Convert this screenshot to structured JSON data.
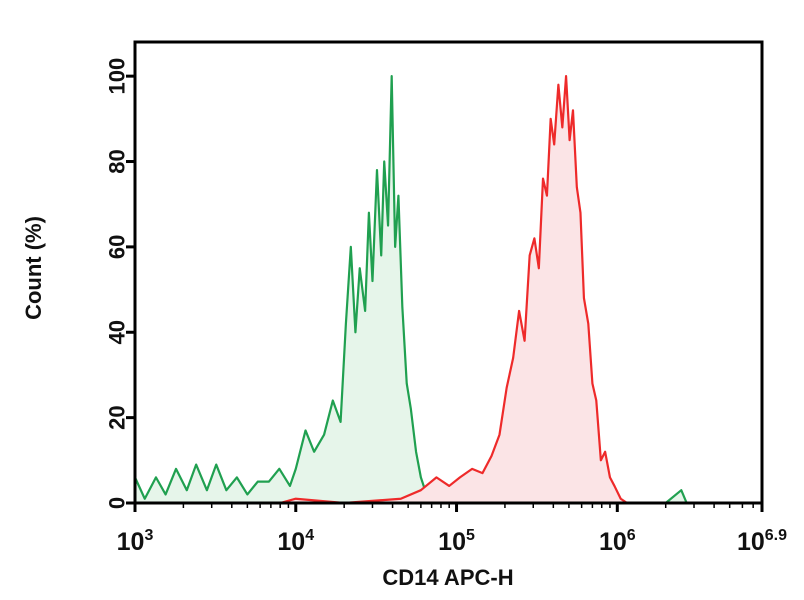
{
  "chart_data": {
    "type": "area",
    "xscale": "log",
    "xlim": [
      1000,
      7943282
    ],
    "ylim": [
      0,
      108
    ],
    "xlabel": "CD14 APC-H",
    "ylabel": "Count (%)",
    "yticks": [
      0,
      20,
      40,
      60,
      80,
      100
    ],
    "xticks": [
      {
        "base": "10",
        "exp": "3",
        "value": 1000
      },
      {
        "base": "10",
        "exp": "4",
        "value": 10000
      },
      {
        "base": "10",
        "exp": "5",
        "value": 100000
      },
      {
        "base": "10",
        "exp": "6",
        "value": 1000000
      },
      {
        "base": "10",
        "exp": "6.9",
        "value": 7943282
      }
    ],
    "grid": false,
    "legend": "none",
    "series": [
      {
        "color": "#20a050",
        "fill": "#e6f5ea",
        "points": [
          [
            1000,
            6
          ],
          [
            1150,
            1
          ],
          [
            1350,
            6
          ],
          [
            1550,
            2
          ],
          [
            1800,
            8
          ],
          [
            2100,
            3
          ],
          [
            2400,
            9
          ],
          [
            2800,
            3
          ],
          [
            3200,
            9
          ],
          [
            3700,
            3
          ],
          [
            4300,
            6
          ],
          [
            5000,
            2
          ],
          [
            5800,
            5
          ],
          [
            6800,
            5
          ],
          [
            7900,
            8
          ],
          [
            9200,
            4
          ],
          [
            10000,
            8
          ],
          [
            11500,
            17
          ],
          [
            13000,
            12
          ],
          [
            15000,
            16
          ],
          [
            17000,
            24
          ],
          [
            19000,
            19
          ],
          [
            20500,
            42
          ],
          [
            22000,
            60
          ],
          [
            23500,
            40
          ],
          [
            25000,
            55
          ],
          [
            27000,
            45
          ],
          [
            28500,
            68
          ],
          [
            30000,
            52
          ],
          [
            32000,
            78
          ],
          [
            34000,
            58
          ],
          [
            35500,
            80
          ],
          [
            37500,
            65
          ],
          [
            39500,
            100
          ],
          [
            41500,
            60
          ],
          [
            43500,
            72
          ],
          [
            46000,
            46
          ],
          [
            49000,
            28
          ],
          [
            52000,
            22
          ],
          [
            56000,
            12
          ],
          [
            60000,
            6
          ],
          [
            65000,
            2
          ],
          [
            70000,
            0
          ],
          [
            100000,
            0
          ],
          [
            130000,
            1
          ],
          [
            200000,
            1
          ],
          [
            300000,
            0
          ],
          [
            900000,
            1
          ],
          [
            1000000,
            0
          ],
          [
            2000000,
            0
          ],
          [
            2500000,
            3
          ],
          [
            2700000,
            0
          ],
          [
            7943282,
            0
          ]
        ]
      },
      {
        "color": "#ee2a2a",
        "fill": "#fbe4e6",
        "points": [
          [
            1000,
            0
          ],
          [
            8000,
            0
          ],
          [
            10000,
            1
          ],
          [
            20000,
            0
          ],
          [
            45000,
            1
          ],
          [
            60000,
            3
          ],
          [
            75000,
            6
          ],
          [
            90000,
            4
          ],
          [
            105000,
            6
          ],
          [
            125000,
            8
          ],
          [
            145000,
            7
          ],
          [
            165000,
            11
          ],
          [
            185000,
            16
          ],
          [
            205000,
            27
          ],
          [
            225000,
            34
          ],
          [
            245000,
            45
          ],
          [
            265000,
            38
          ],
          [
            285000,
            58
          ],
          [
            305000,
            62
          ],
          [
            325000,
            55
          ],
          [
            345000,
            76
          ],
          [
            365000,
            72
          ],
          [
            385000,
            90
          ],
          [
            405000,
            84
          ],
          [
            430000,
            98
          ],
          [
            455000,
            88
          ],
          [
            480000,
            100
          ],
          [
            505000,
            85
          ],
          [
            530000,
            92
          ],
          [
            560000,
            74
          ],
          [
            590000,
            68
          ],
          [
            620000,
            48
          ],
          [
            660000,
            42
          ],
          [
            700000,
            28
          ],
          [
            740000,
            24
          ],
          [
            790000,
            10
          ],
          [
            840000,
            12
          ],
          [
            900000,
            6
          ],
          [
            960000,
            4
          ],
          [
            1050000,
            1
          ],
          [
            1150000,
            0
          ],
          [
            7943282,
            0
          ]
        ]
      }
    ]
  }
}
